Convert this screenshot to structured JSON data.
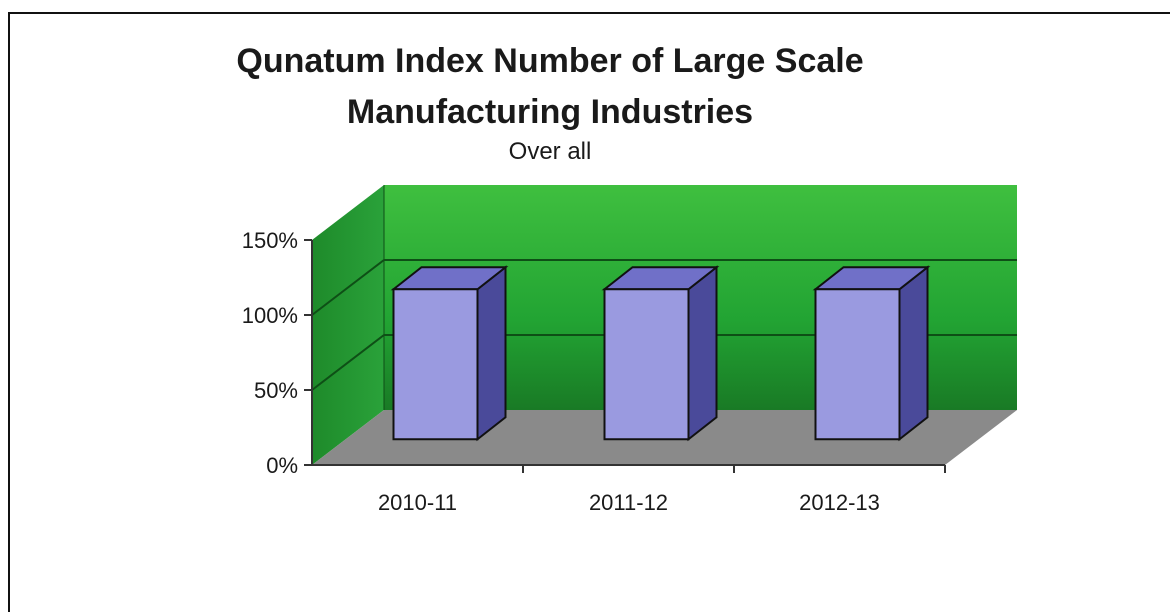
{
  "chart_data": {
    "type": "bar",
    "title_line1": "Qunatum Index Number of Large Scale",
    "title_line2": "Manufacturing Industries",
    "subtitle": "Over all",
    "categories": [
      "2010-11",
      "2011-12",
      "2012-13"
    ],
    "values": [
      100,
      100,
      100
    ],
    "y_ticks": [
      "0%",
      "50%",
      "100%",
      "150%"
    ],
    "ylim": [
      0,
      150
    ],
    "grid": true,
    "legend": "none",
    "colors": {
      "wall_top": "#3fbf3f",
      "wall_bottom": "#1f8a2a",
      "floor": "#8a8a8a",
      "bar_front": "#9a9ae0",
      "bar_side": "#4a4a9a",
      "bar_top": "#7070c8"
    }
  }
}
